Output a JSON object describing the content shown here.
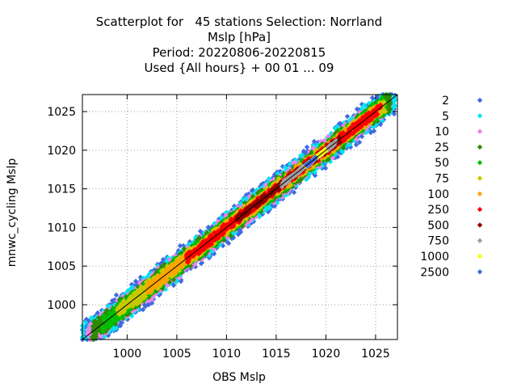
{
  "chart_data": {
    "type": "scatter",
    "title_lines": [
      "Scatterplot for   45 stations Selection: Norrland",
      "Mslp [hPa]",
      "Period: 20220806-20220815",
      "Used {All hours} + 00 01 ... 09"
    ],
    "xlabel": "OBS Mslp",
    "ylabel": "mnwc_cycling Mslp",
    "xlim": [
      995.5,
      1027.2
    ],
    "ylim": [
      995.5,
      1027.2
    ],
    "xticks": [
      "1000",
      "1005",
      "1010",
      "1015",
      "1020",
      "1025"
    ],
    "yticks": [
      "1000",
      "1005",
      "1010",
      "1015",
      "1020",
      "1025"
    ],
    "grid": true,
    "diagonal_line": true,
    "legend_position": "right",
    "legend_title": "",
    "series": [
      {
        "name": "2",
        "color": "#4169e1",
        "band": 1.1,
        "from": 995.5,
        "to": 1027.0
      },
      {
        "name": "5",
        "color": "#00e5ee",
        "band": 0.95,
        "from": 995.5,
        "to": 1027.0
      },
      {
        "name": "10",
        "color": "#ee82ee",
        "band": 0.8,
        "from": 996.0,
        "to": 1026.5
      },
      {
        "name": "25",
        "color": "#2e8b00",
        "band": 0.7,
        "from": 996.5,
        "to": 1026.5
      },
      {
        "name": "50",
        "color": "#00c000",
        "band": 0.58,
        "from": 997.5,
        "to": 1026.0
      },
      {
        "name": "75",
        "color": "#c8c800",
        "band": 0.48,
        "from": 999.0,
        "to": 1026.0
      },
      {
        "name": "100",
        "color": "#ffa500",
        "band": 0.4,
        "from": 1002.0,
        "to": 1025.5
      },
      {
        "name": "250",
        "color": "#ff0000",
        "band": 0.32,
        "from": 1006.0,
        "to": 1025.5
      },
      {
        "name": "500",
        "color": "#8b0000",
        "band": 0.22,
        "from": 1011.0,
        "to": 1021.5
      },
      {
        "name": "750",
        "color": "#a0a0a0",
        "band": 0.14,
        "from": 1015.5,
        "to": 1021.0
      },
      {
        "name": "1000",
        "color": "#ffff00",
        "band": 0.08,
        "from": 1018.0,
        "to": 1020.0
      },
      {
        "name": "2500",
        "color": "#4169e1",
        "band": 0.05,
        "from": 1018.0,
        "to": 1019.0
      }
    ]
  }
}
